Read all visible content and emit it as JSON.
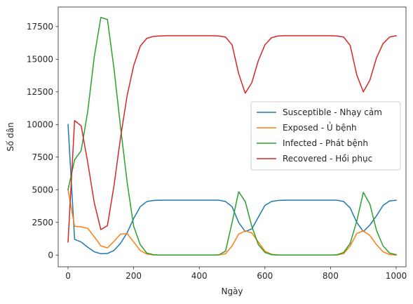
{
  "chart_data": {
    "type": "line",
    "title": "",
    "xlabel": "Ngày",
    "ylabel": "Số dân",
    "xlim": [
      -30,
      1030
    ],
    "ylim": [
      -900,
      19000
    ],
    "x_ticks": [
      0,
      200,
      400,
      600,
      800,
      1000
    ],
    "x_tick_labels": [
      "0",
      "200",
      "400",
      "600",
      "800",
      "1000"
    ],
    "y_ticks": [
      0,
      2500,
      5000,
      7500,
      10000,
      12500,
      15000,
      17500
    ],
    "y_tick_labels": [
      "0",
      "2500",
      "5000",
      "7500",
      "10000",
      "12500",
      "15000",
      "17500"
    ],
    "grid": false,
    "legend_position": "center-right",
    "x": [
      0,
      20,
      40,
      60,
      80,
      100,
      120,
      140,
      160,
      180,
      200,
      220,
      240,
      260,
      280,
      300,
      320,
      340,
      360,
      380,
      400,
      420,
      440,
      460,
      480,
      500,
      520,
      540,
      560,
      580,
      600,
      620,
      640,
      660,
      680,
      700,
      720,
      740,
      760,
      780,
      800,
      820,
      840,
      860,
      880,
      900,
      920,
      940,
      960,
      980,
      1000
    ],
    "series": [
      {
        "name": "Susceptible - Nhạy cảm",
        "color": "#1f77b4",
        "values": [
          10000,
          1200,
          1000,
          600,
          250,
          100,
          120,
          350,
          900,
          1700,
          2800,
          3700,
          4100,
          4180,
          4200,
          4200,
          4200,
          4200,
          4200,
          4200,
          4200,
          4200,
          4200,
          4200,
          4100,
          3700,
          2500,
          1800,
          2000,
          2900,
          3800,
          4100,
          4180,
          4200,
          4200,
          4200,
          4200,
          4200,
          4200,
          4200,
          4200,
          4200,
          4100,
          3600,
          2500,
          1800,
          2300,
          3000,
          3800,
          4150,
          4200
        ]
      },
      {
        "name": "Exposed - Ủ bệnh",
        "color": "#ff7f0e",
        "values": [
          5000,
          2200,
          2150,
          2050,
          1400,
          700,
          550,
          1050,
          1600,
          1650,
          1000,
          350,
          80,
          10,
          0,
          0,
          0,
          0,
          0,
          0,
          0,
          0,
          0,
          10,
          100,
          700,
          1600,
          1850,
          1700,
          1000,
          300,
          60,
          10,
          0,
          0,
          0,
          0,
          0,
          0,
          0,
          0,
          10,
          100,
          700,
          1650,
          1850,
          1500,
          800,
          250,
          40,
          0
        ]
      },
      {
        "name": "Infected - Phát bệnh",
        "color": "#2ca02c",
        "values": [
          5000,
          7300,
          8000,
          11000,
          15200,
          18200,
          18050,
          14300,
          9800,
          5600,
          2200,
          800,
          150,
          30,
          0,
          0,
          0,
          0,
          0,
          0,
          0,
          0,
          0,
          20,
          300,
          2500,
          4850,
          4100,
          2200,
          800,
          200,
          30,
          0,
          0,
          0,
          0,
          0,
          0,
          0,
          0,
          0,
          20,
          200,
          900,
          2600,
          4800,
          3900,
          1900,
          700,
          150,
          30
        ]
      },
      {
        "name": "Recovered - Hồi phục",
        "color": "#d62728",
        "values": [
          1000,
          10300,
          9900,
          7100,
          4000,
          1950,
          2250,
          5300,
          9000,
          12200,
          14500,
          16000,
          16600,
          16750,
          16780,
          16800,
          16800,
          16800,
          16800,
          16800,
          16800,
          16800,
          16800,
          16780,
          16700,
          16100,
          13900,
          12400,
          13200,
          14900,
          16100,
          16650,
          16780,
          16800,
          16800,
          16800,
          16800,
          16800,
          16800,
          16800,
          16800,
          16780,
          16700,
          16050,
          13800,
          12500,
          13400,
          15100,
          16200,
          16700,
          16800
        ]
      }
    ]
  }
}
